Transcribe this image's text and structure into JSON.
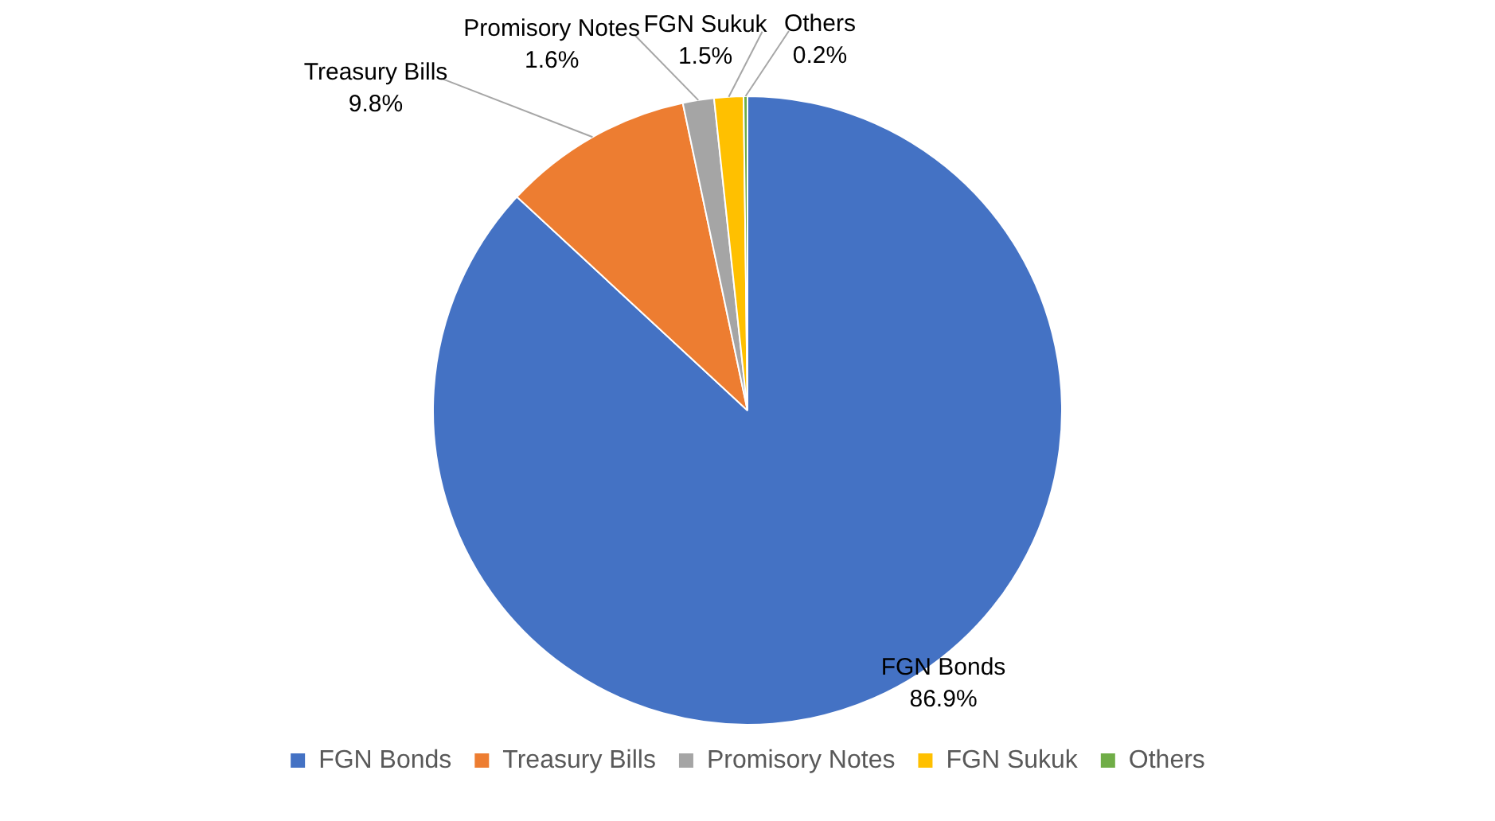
{
  "chart_data": {
    "type": "pie",
    "categories": [
      "FGN Bonds",
      "Treasury Bills",
      "Promisory Notes",
      "FGN Sukuk",
      "Others"
    ],
    "values": [
      86.9,
      9.8,
      1.6,
      1.5,
      0.2
    ],
    "colors": [
      "#4472c4",
      "#ed7d31",
      "#a5a5a5",
      "#ffc000",
      "#70ad47"
    ],
    "value_labels": [
      "86.9%",
      "9.8%",
      "1.6%",
      "1.5%",
      "0.2%"
    ],
    "legend": "bottom"
  }
}
